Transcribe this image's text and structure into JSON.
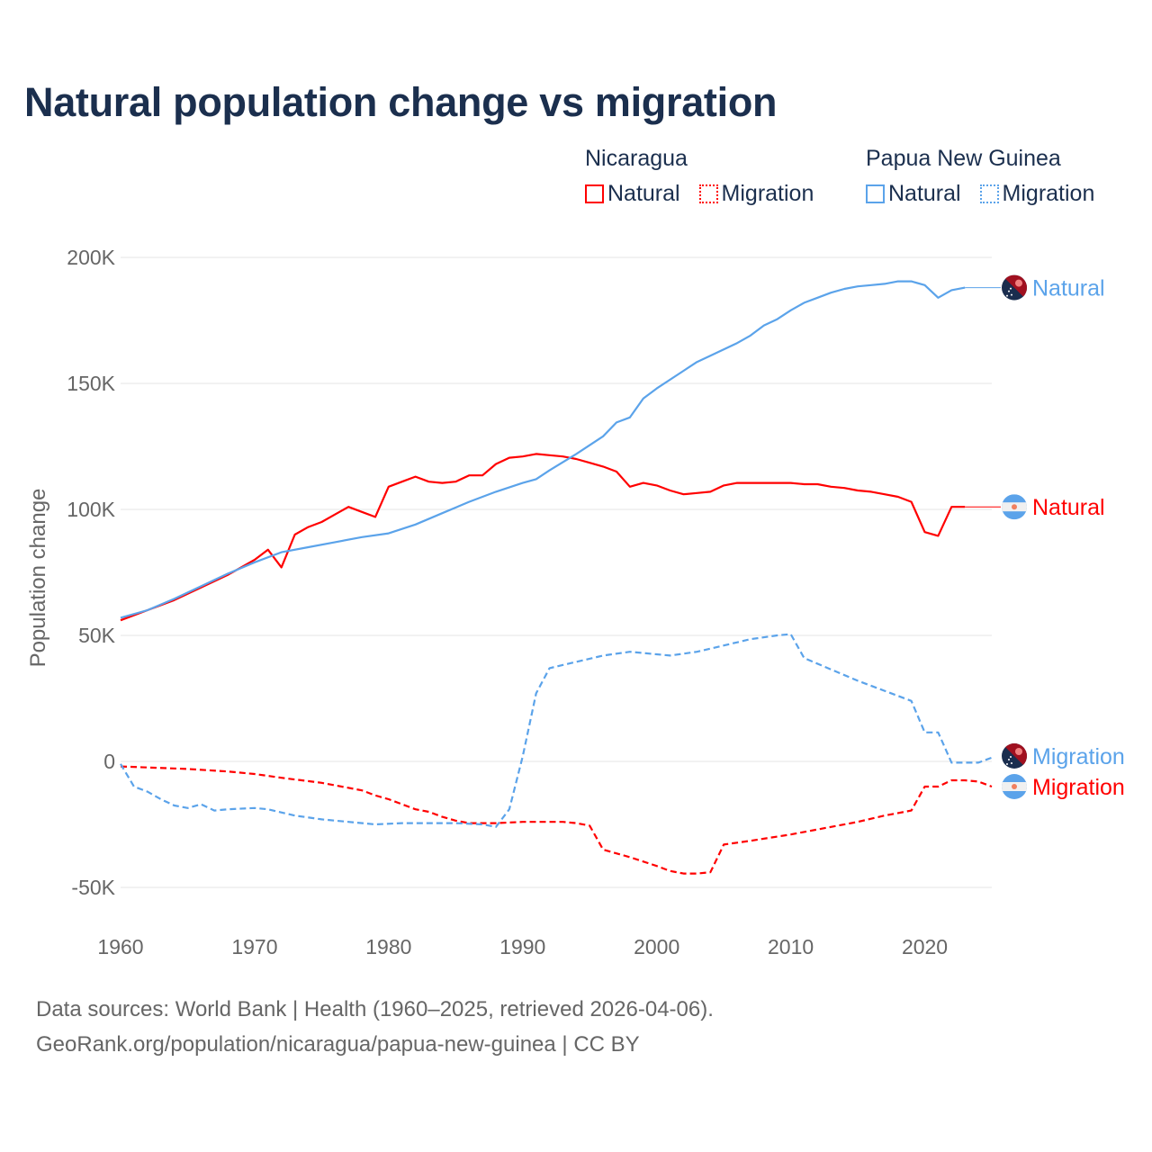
{
  "title": "Natural population change vs migration",
  "legend": {
    "groups": [
      {
        "title": "Nicaragua",
        "items": [
          {
            "label": "Natural",
            "style": "solid"
          },
          {
            "label": "Migration",
            "style": "dotted"
          }
        ],
        "color": "#ff0000"
      },
      {
        "title": "Papua New Guinea",
        "items": [
          {
            "label": "Natural",
            "style": "solid"
          },
          {
            "label": "Migration",
            "style": "dotted"
          }
        ],
        "color": "#5ba3ea"
      }
    ]
  },
  "footer": {
    "line1": "Data sources: World Bank | Health (1960–2025, retrieved 2026-04-06).",
    "line2": "GeoRank.org/population/nicaragua/papua-new-guinea | CC BY"
  },
  "chart_data": {
    "type": "line",
    "title": "Natural population change vs migration",
    "xlabel": "",
    "ylabel": "Population change",
    "xlim": [
      1960,
      2025
    ],
    "ylim": [
      -55000,
      200000
    ],
    "x_ticks": [
      1960,
      1970,
      1980,
      1990,
      2000,
      2010,
      2020
    ],
    "x_tick_labels": [
      "1960",
      "1970",
      "1980",
      "1990",
      "2000",
      "2010",
      "2020"
    ],
    "y_ticks": [
      200000,
      150000,
      100000,
      50000,
      0,
      -50000
    ],
    "y_tick_labels": [
      "200K",
      "150K",
      "100K",
      "50K",
      "0",
      "-50K"
    ],
    "grid": true,
    "legend_position": "top-right",
    "series": [
      {
        "name": "Nicaragua Natural",
        "end_label": "Natural",
        "flag": "nicaragua",
        "color": "#ff0000",
        "dash": false,
        "points": [
          [
            1960,
            56000
          ],
          [
            1962,
            60000
          ],
          [
            1964,
            64000
          ],
          [
            1966,
            69000
          ],
          [
            1968,
            74000
          ],
          [
            1970,
            80000
          ],
          [
            1971,
            84000
          ],
          [
            1972,
            77000
          ],
          [
            1973,
            90000
          ],
          [
            1974,
            93000
          ],
          [
            1975,
            95000
          ],
          [
            1976,
            98000
          ],
          [
            1977,
            101000
          ],
          [
            1978,
            99000
          ],
          [
            1979,
            97000
          ],
          [
            1980,
            109000
          ],
          [
            1981,
            111000
          ],
          [
            1982,
            113000
          ],
          [
            1983,
            111000
          ],
          [
            1984,
            110500
          ],
          [
            1985,
            111000
          ],
          [
            1986,
            113500
          ],
          [
            1987,
            113500
          ],
          [
            1988,
            118000
          ],
          [
            1989,
            120500
          ],
          [
            1990,
            121000
          ],
          [
            1991,
            122000
          ],
          [
            1992,
            121500
          ],
          [
            1993,
            121000
          ],
          [
            1994,
            120000
          ],
          [
            1995,
            118500
          ],
          [
            1996,
            117000
          ],
          [
            1997,
            115000
          ],
          [
            1998,
            109000
          ],
          [
            1999,
            110500
          ],
          [
            2000,
            109500
          ],
          [
            2001,
            107500
          ],
          [
            2002,
            106000
          ],
          [
            2003,
            106500
          ],
          [
            2004,
            107000
          ],
          [
            2005,
            109500
          ],
          [
            2006,
            110500
          ],
          [
            2007,
            110500
          ],
          [
            2008,
            110500
          ],
          [
            2009,
            110500
          ],
          [
            2010,
            110500
          ],
          [
            2011,
            110000
          ],
          [
            2012,
            110000
          ],
          [
            2013,
            109000
          ],
          [
            2014,
            108500
          ],
          [
            2015,
            107500
          ],
          [
            2016,
            107000
          ],
          [
            2017,
            106000
          ],
          [
            2018,
            105000
          ],
          [
            2019,
            103000
          ],
          [
            2020,
            91000
          ],
          [
            2021,
            89500
          ],
          [
            2022,
            101000
          ],
          [
            2023,
            101000
          ],
          [
            2025,
            101000
          ]
        ]
      },
      {
        "name": "Nicaragua Migration",
        "end_label": "Migration",
        "flag": "nicaragua",
        "color": "#ff0000",
        "dash": true,
        "points": [
          [
            1960,
            -2000
          ],
          [
            1965,
            -3000
          ],
          [
            1968,
            -4000
          ],
          [
            1970,
            -5000
          ],
          [
            1972,
            -6500
          ],
          [
            1975,
            -8500
          ],
          [
            1978,
            -11500
          ],
          [
            1979,
            -13500
          ],
          [
            1980,
            -15000
          ],
          [
            1982,
            -19000
          ],
          [
            1983,
            -20000
          ],
          [
            1984,
            -22000
          ],
          [
            1985,
            -23500
          ],
          [
            1986,
            -24500
          ],
          [
            1988,
            -24500
          ],
          [
            1990,
            -24000
          ],
          [
            1991,
            -24000
          ],
          [
            1993,
            -24000
          ],
          [
            1994,
            -24500
          ],
          [
            1995,
            -25500
          ],
          [
            1996,
            -35000
          ],
          [
            1998,
            -38000
          ],
          [
            2000,
            -41500
          ],
          [
            2001,
            -43500
          ],
          [
            2002,
            -44500
          ],
          [
            2003,
            -44500
          ],
          [
            2004,
            -44000
          ],
          [
            2005,
            -33000
          ],
          [
            2007,
            -31500
          ],
          [
            2010,
            -29000
          ],
          [
            2013,
            -26000
          ],
          [
            2015,
            -24000
          ],
          [
            2017,
            -21500
          ],
          [
            2019,
            -19500
          ],
          [
            2020,
            -10000
          ],
          [
            2021,
            -10000
          ],
          [
            2022,
            -7500
          ],
          [
            2023,
            -7500
          ],
          [
            2024,
            -8000
          ],
          [
            2025,
            -10000
          ]
        ]
      },
      {
        "name": "Papua New Guinea Natural",
        "end_label": "Natural",
        "flag": "png",
        "color": "#5ba3ea",
        "dash": false,
        "points": [
          [
            1960,
            57000
          ],
          [
            1962,
            60000
          ],
          [
            1964,
            64500
          ],
          [
            1966,
            69500
          ],
          [
            1968,
            74500
          ],
          [
            1970,
            79000
          ],
          [
            1972,
            83000
          ],
          [
            1974,
            85000
          ],
          [
            1976,
            87000
          ],
          [
            1978,
            89000
          ],
          [
            1980,
            90500
          ],
          [
            1982,
            94000
          ],
          [
            1984,
            98500
          ],
          [
            1986,
            103000
          ],
          [
            1988,
            107000
          ],
          [
            1990,
            110500
          ],
          [
            1991,
            112000
          ],
          [
            1992,
            115500
          ],
          [
            1994,
            122000
          ],
          [
            1996,
            129000
          ],
          [
            1997,
            134500
          ],
          [
            1998,
            136500
          ],
          [
            1999,
            144000
          ],
          [
            2000,
            148000
          ],
          [
            2002,
            155000
          ],
          [
            2003,
            158500
          ],
          [
            2004,
            161000
          ],
          [
            2006,
            166000
          ],
          [
            2007,
            169000
          ],
          [
            2008,
            173000
          ],
          [
            2009,
            175500
          ],
          [
            2010,
            179000
          ],
          [
            2011,
            182000
          ],
          [
            2012,
            184000
          ],
          [
            2013,
            186000
          ],
          [
            2014,
            187500
          ],
          [
            2015,
            188500
          ],
          [
            2016,
            189000
          ],
          [
            2017,
            189500
          ],
          [
            2018,
            190500
          ],
          [
            2019,
            190500
          ],
          [
            2020,
            189000
          ],
          [
            2021,
            184000
          ],
          [
            2022,
            187000
          ],
          [
            2023,
            188000
          ],
          [
            2025,
            188000
          ]
        ]
      },
      {
        "name": "Papua New Guinea Migration",
        "end_label": "Migration",
        "flag": "png",
        "color": "#5ba3ea",
        "dash": true,
        "points": [
          [
            1960,
            -1000
          ],
          [
            1961,
            -10000
          ],
          [
            1962,
            -12000
          ],
          [
            1963,
            -15000
          ],
          [
            1964,
            -17500
          ],
          [
            1965,
            -18500
          ],
          [
            1966,
            -17000
          ],
          [
            1967,
            -19500
          ],
          [
            1968,
            -19000
          ],
          [
            1970,
            -18500
          ],
          [
            1971,
            -19000
          ],
          [
            1973,
            -21500
          ],
          [
            1975,
            -23000
          ],
          [
            1977,
            -24000
          ],
          [
            1979,
            -25000
          ],
          [
            1981,
            -24500
          ],
          [
            1985,
            -24500
          ],
          [
            1987,
            -25000
          ],
          [
            1988,
            -26000
          ],
          [
            1989,
            -19000
          ],
          [
            1990,
            2000
          ],
          [
            1991,
            27000
          ],
          [
            1992,
            37000
          ],
          [
            1994,
            39500
          ],
          [
            1996,
            42000
          ],
          [
            1998,
            43500
          ],
          [
            2000,
            42500
          ],
          [
            2001,
            42000
          ],
          [
            2003,
            43500
          ],
          [
            2005,
            46000
          ],
          [
            2007,
            48500
          ],
          [
            2009,
            50000
          ],
          [
            2010,
            50500
          ],
          [
            2011,
            41000
          ],
          [
            2013,
            36500
          ],
          [
            2015,
            32000
          ],
          [
            2017,
            28000
          ],
          [
            2019,
            24000
          ],
          [
            2020,
            11500
          ],
          [
            2021,
            11500
          ],
          [
            2022,
            -500
          ],
          [
            2024,
            -500
          ],
          [
            2025,
            1500
          ]
        ]
      }
    ]
  }
}
